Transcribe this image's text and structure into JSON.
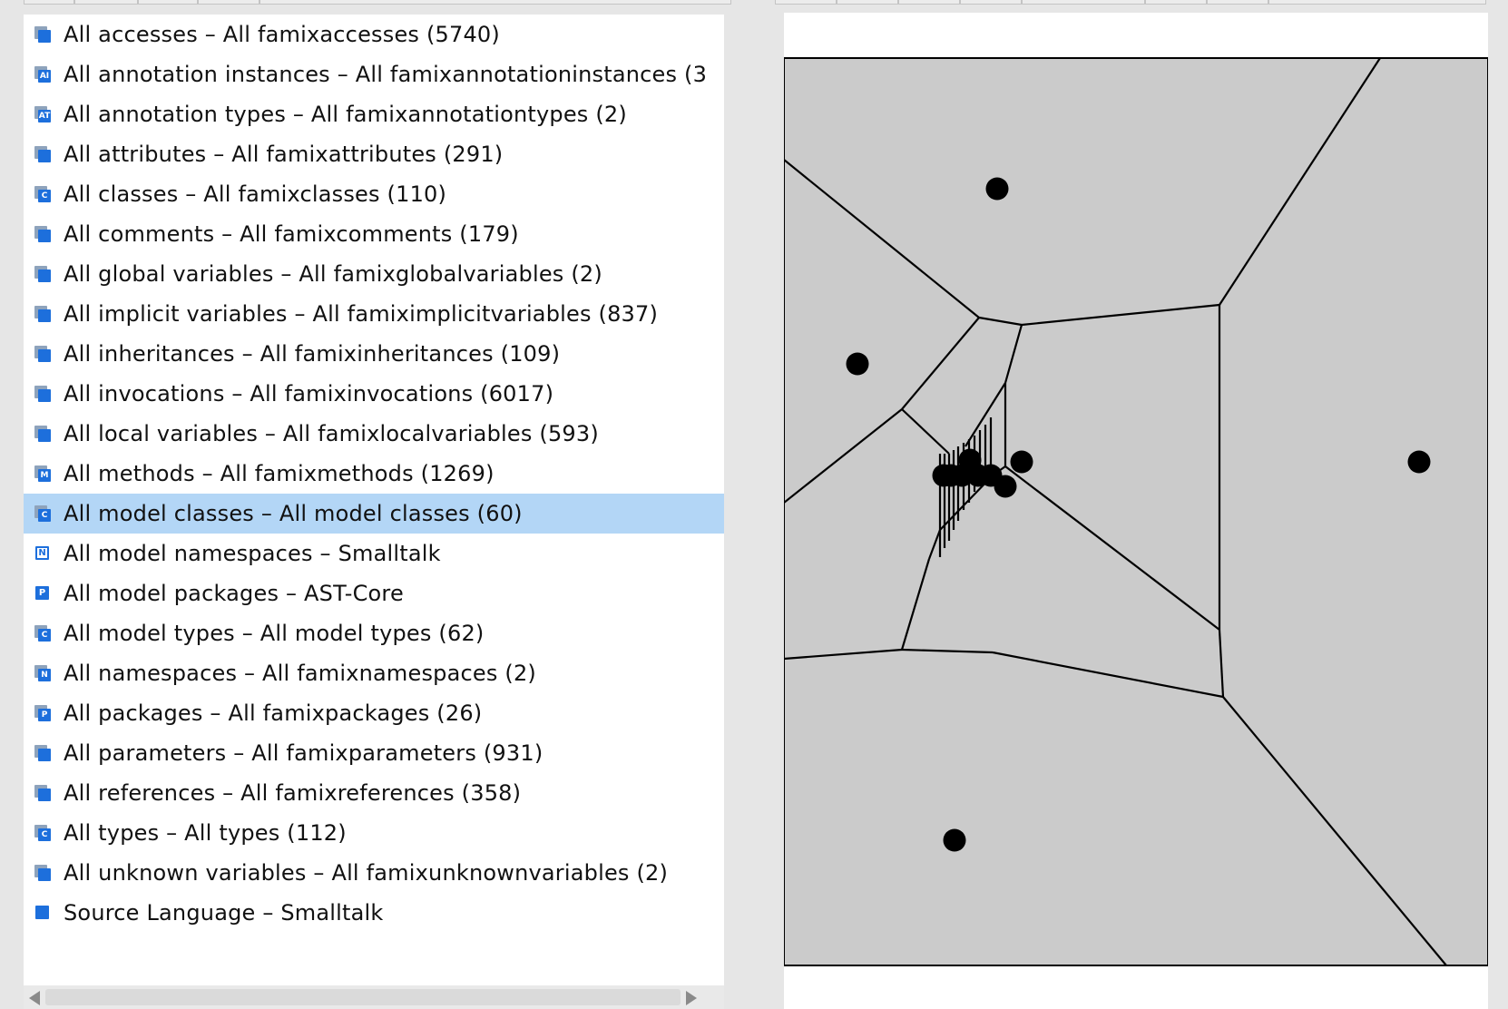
{
  "list": {
    "items": [
      {
        "label": "All accesses – All famixaccesses (5740)",
        "icon": "stacked-entity-icon",
        "letter": ""
      },
      {
        "label": "All annotation instances – All famixannotationinstances (3",
        "icon": "annotation-instance-icon",
        "letter": "AI"
      },
      {
        "label": "All annotation types – All famixannotationtypes (2)",
        "icon": "annotation-type-icon",
        "letter": "AT"
      },
      {
        "label": "All attributes – All famixattributes (291)",
        "icon": "stacked-entity-icon",
        "letter": ""
      },
      {
        "label": "All classes – All famixclasses (110)",
        "icon": "class-icon",
        "letter": "C"
      },
      {
        "label": "All comments – All famixcomments (179)",
        "icon": "stacked-entity-icon",
        "letter": ""
      },
      {
        "label": "All global variables – All famixglobalvariables (2)",
        "icon": "stacked-entity-icon",
        "letter": ""
      },
      {
        "label": "All implicit variables – All famiximplicitvariables (837)",
        "icon": "stacked-entity-icon",
        "letter": ""
      },
      {
        "label": "All inheritances – All famixinheritances (109)",
        "icon": "stacked-entity-icon",
        "letter": ""
      },
      {
        "label": "All invocations – All famixinvocations (6017)",
        "icon": "stacked-entity-icon",
        "letter": ""
      },
      {
        "label": "All local variables – All famixlocalvariables (593)",
        "icon": "stacked-entity-icon",
        "letter": ""
      },
      {
        "label": "All methods – All famixmethods (1269)",
        "icon": "method-icon",
        "letter": "M"
      },
      {
        "label": "All model classes – All model classes (60)",
        "icon": "class-icon",
        "letter": "C"
      },
      {
        "label": "All model namespaces – Smalltalk",
        "icon": "namespace-icon",
        "letter": "N"
      },
      {
        "label": "All model packages – AST-Core",
        "icon": "package-icon",
        "letter": "P"
      },
      {
        "label": "All model types – All model types (62)",
        "icon": "class-icon",
        "letter": "C"
      },
      {
        "label": "All namespaces – All famixnamespaces (2)",
        "icon": "namespace-icon",
        "letter": "N"
      },
      {
        "label": "All packages – All famixpackages (26)",
        "icon": "package-icon",
        "letter": "P"
      },
      {
        "label": "All parameters – All famixparameters (931)",
        "icon": "stacked-entity-icon",
        "letter": ""
      },
      {
        "label": "All references – All famixreferences (358)",
        "icon": "stacked-entity-icon",
        "letter": ""
      },
      {
        "label": "All types – All types (112)",
        "icon": "class-icon",
        "letter": "C"
      },
      {
        "label": "All unknown variables – All famixunknownvariables (2)",
        "icon": "stacked-entity-icon",
        "letter": ""
      },
      {
        "label": "Source Language – Smalltalk",
        "icon": "entity-icon",
        "letter": ""
      }
    ],
    "selected_index": 12
  },
  "colors": {
    "selection": "#b3d6f6",
    "icon_blue": "#1d6fdc",
    "cell_fill": "#cbcbcb",
    "edge": "#000000",
    "site": "#000000"
  }
}
